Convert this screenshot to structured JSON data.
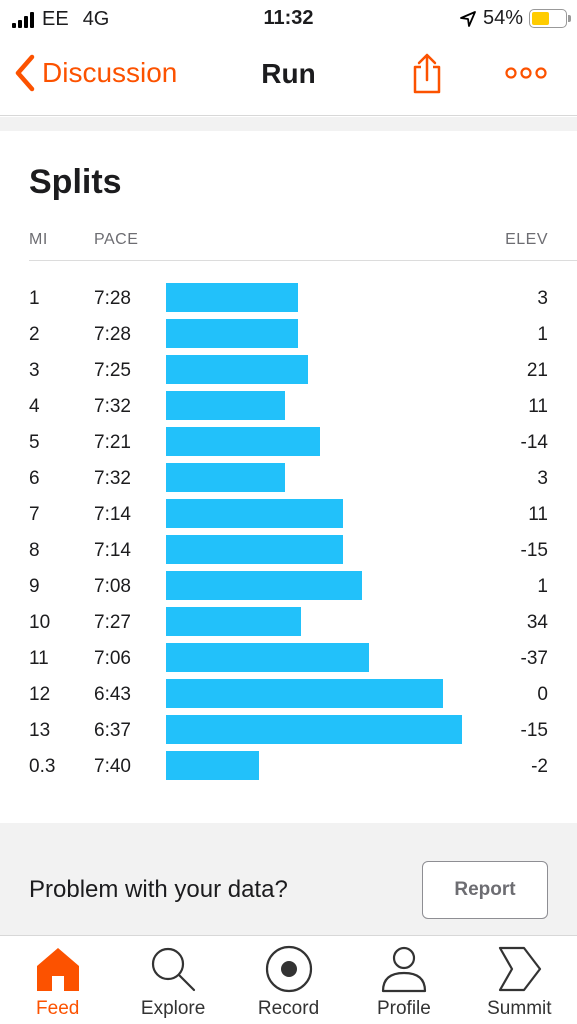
{
  "status_bar": {
    "carrier": "EE",
    "network": "4G",
    "time": "11:32",
    "battery": "54%",
    "battery_level": 0.54,
    "battery_color": "#ffcc00"
  },
  "nav": {
    "back_label": "Discussion",
    "title": "Run",
    "accent_color": "#fc5200"
  },
  "splits": {
    "title": "Splits",
    "columns": {
      "mi": "MI",
      "pace": "PACE",
      "elev": "ELEV"
    },
    "bar_color": "#22c1fa",
    "rows": [
      {
        "mi": "1",
        "pace": "7:28",
        "elev": "3"
      },
      {
        "mi": "2",
        "pace": "7:28",
        "elev": "1"
      },
      {
        "mi": "3",
        "pace": "7:25",
        "elev": "21"
      },
      {
        "mi": "4",
        "pace": "7:32",
        "elev": "11"
      },
      {
        "mi": "5",
        "pace": "7:21",
        "elev": "-14"
      },
      {
        "mi": "6",
        "pace": "7:32",
        "elev": "3"
      },
      {
        "mi": "7",
        "pace": "7:14",
        "elev": "11"
      },
      {
        "mi": "8",
        "pace": "7:14",
        "elev": "-15"
      },
      {
        "mi": "9",
        "pace": "7:08",
        "elev": "1"
      },
      {
        "mi": "10",
        "pace": "7:27",
        "elev": "34"
      },
      {
        "mi": "11",
        "pace": "7:06",
        "elev": "-37"
      },
      {
        "mi": "12",
        "pace": "6:43",
        "elev": "0"
      },
      {
        "mi": "13",
        "pace": "6:37",
        "elev": "-15"
      },
      {
        "mi": "0.3",
        "pace": "7:40",
        "elev": "-2"
      }
    ]
  },
  "problem": {
    "text": "Problem with your data?",
    "button": "Report"
  },
  "tabs": [
    {
      "label": "Feed",
      "icon": "home-icon",
      "active": true
    },
    {
      "label": "Explore",
      "icon": "search-icon",
      "active": false
    },
    {
      "label": "Record",
      "icon": "record-icon",
      "active": false
    },
    {
      "label": "Profile",
      "icon": "profile-icon",
      "active": false
    },
    {
      "label": "Summit",
      "icon": "summit-icon",
      "active": false
    }
  ]
}
